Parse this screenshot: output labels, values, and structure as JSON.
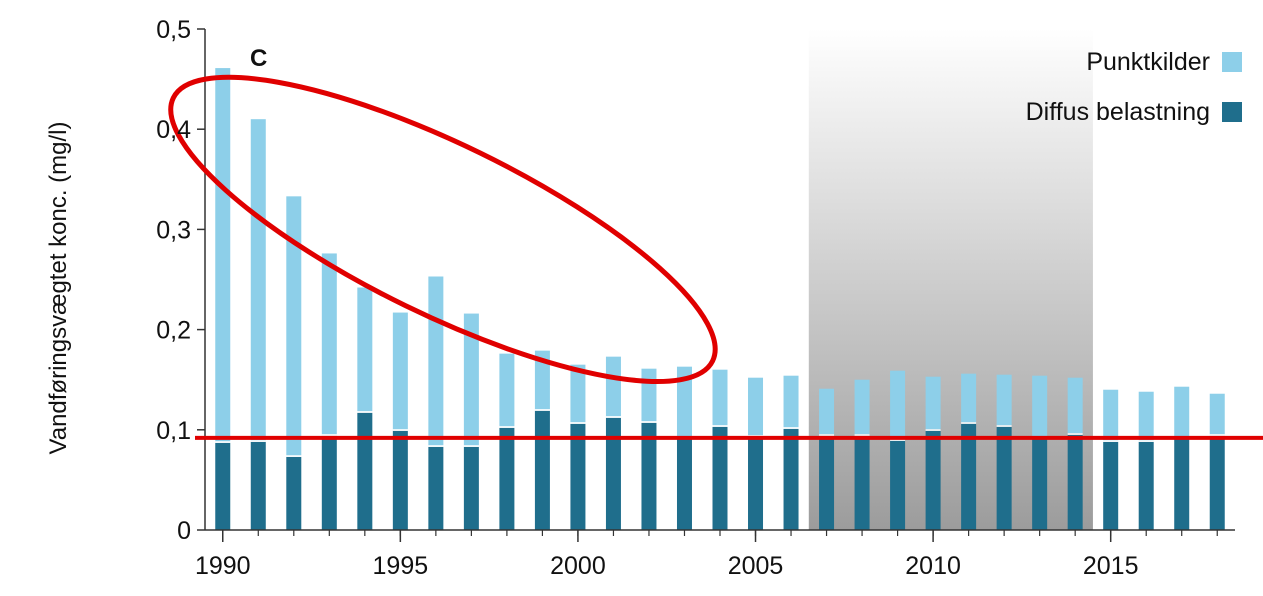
{
  "chart_data": {
    "type": "bar",
    "stacked": true,
    "panel_letter": "C",
    "ylabel": "Vandføringsvægtet konc. (mg/l)",
    "xlabel": "",
    "ylim": [
      0,
      0.5
    ],
    "yticks": [
      0,
      0.1,
      0.2,
      0.3,
      0.4,
      0.5
    ],
    "ytick_labels": [
      "0",
      "0,1",
      "0,2",
      "0,3",
      "0,4",
      "0,5"
    ],
    "xlim": [
      1989.5,
      2018.5
    ],
    "xticks": [
      1990,
      1995,
      2000,
      2005,
      2010,
      2015
    ],
    "xtick_labels": [
      "1990",
      "1995",
      "2000",
      "2005",
      "2010",
      "2015"
    ],
    "categories": [
      1990,
      1991,
      1992,
      1993,
      1994,
      1995,
      1996,
      1997,
      1998,
      1999,
      2000,
      2001,
      2002,
      2003,
      2004,
      2005,
      2006,
      2007,
      2008,
      2009,
      2010,
      2011,
      2012,
      2013,
      2014,
      2015,
      2016,
      2017,
      2018
    ],
    "series": [
      {
        "name": "Diffus belastning",
        "color": "#1f6e8c",
        "values": [
          0.087,
          0.088,
          0.073,
          0.094,
          0.117,
          0.099,
          0.083,
          0.083,
          0.102,
          0.119,
          0.106,
          0.112,
          0.107,
          0.091,
          0.103,
          0.093,
          0.101,
          0.094,
          0.094,
          0.089,
          0.099,
          0.106,
          0.103,
          0.091,
          0.095,
          0.088,
          0.088,
          0.091,
          0.094
        ]
      },
      {
        "name": "Punktkilder",
        "color": "#8dcfe9",
        "values": [
          0.374,
          0.322,
          0.26,
          0.182,
          0.125,
          0.118,
          0.17,
          0.133,
          0.074,
          0.06,
          0.059,
          0.061,
          0.054,
          0.072,
          0.057,
          0.059,
          0.053,
          0.047,
          0.056,
          0.07,
          0.054,
          0.05,
          0.052,
          0.063,
          0.057,
          0.052,
          0.05,
          0.052,
          0.042
        ]
      }
    ],
    "legend_position": "top-right",
    "shaded_region": {
      "x": [
        2006.5,
        2014.5
      ],
      "color": "#c8c8c8"
    },
    "reference_line": {
      "y": 0.092,
      "color": "#e00000"
    },
    "annotation_ellipse": {
      "color": "#e00000",
      "center": [
        1996.2,
        0.3
      ],
      "description": "ellipse around 1990–2002 bars"
    }
  }
}
